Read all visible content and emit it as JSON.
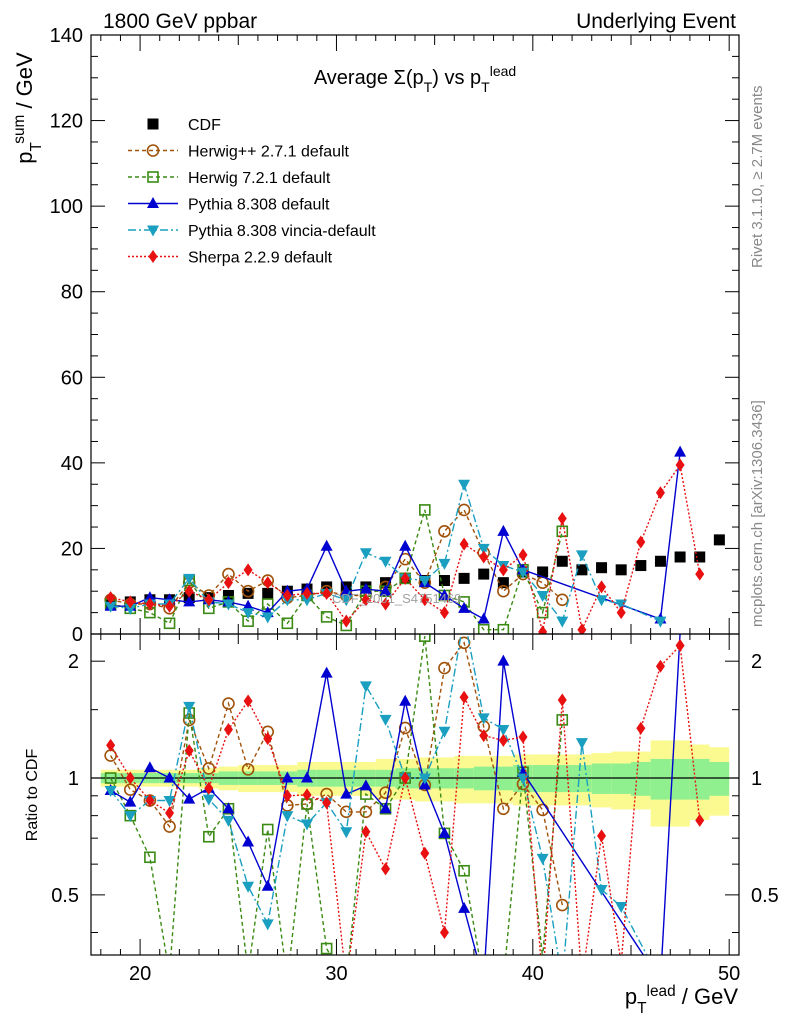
{
  "header": {
    "left": "1800 GeV ppbar",
    "right": "Underlying Event"
  },
  "side_labels": {
    "rivet": "Rivet 3.1.10, ≥ 2.7M events",
    "mcplots": "mcplots.cern.ch [arXiv:1306.3436]"
  },
  "watermark": "CDF_2001_S4751469",
  "chart_data": [
    {
      "type": "line",
      "title": "Average Σ(p_T) vs p_T^lead",
      "ylabel": "p_T^sum / GeV",
      "xlabel": "p_T^lead / GeV",
      "xlim": [
        17.5,
        50.5
      ],
      "ylim": [
        0,
        140
      ],
      "yticks": [
        0,
        20,
        40,
        60,
        80,
        100,
        120,
        140
      ],
      "legend_position": "top-left",
      "series": [
        {
          "name": "CDF",
          "color": "#000000",
          "marker": "square-filled",
          "x": [
            18.5,
            19.5,
            20.5,
            21.5,
            22.5,
            23.5,
            24.5,
            25.5,
            26.5,
            27.5,
            28.5,
            29.5,
            30.5,
            31.5,
            32.5,
            33.5,
            34.5,
            35.5,
            36.5,
            37.5,
            38.5,
            39.5,
            40.5,
            41.5,
            42.5,
            43.5,
            44.5,
            45.5,
            46.5,
            47.5,
            48.5,
            49.5
          ],
          "y": [
            7.0,
            7.5,
            8.0,
            8.0,
            8.5,
            8.5,
            9.0,
            9.5,
            9.5,
            10.0,
            10.5,
            11.0,
            11.0,
            11.0,
            12.0,
            13.0,
            12.5,
            12.5,
            13.0,
            14.0,
            12.0,
            14.5,
            14.5,
            17.0,
            15.0,
            15.5,
            15.0,
            16.0,
            17.0,
            18.0,
            18.0,
            22.0
          ]
        },
        {
          "name": "Herwig++ 2.7.1 default",
          "color": "#a0520a",
          "marker": "circle-open",
          "dash": "4,3",
          "x": [
            18.5,
            19.5,
            20.5,
            21.5,
            22.5,
            23.5,
            24.5,
            25.5,
            26.5,
            27.5,
            28.5,
            29.5,
            30.5,
            31.5,
            32.5,
            33.5,
            34.5,
            35.5,
            36.5,
            37.5,
            38.5,
            39.5,
            40.5,
            41.5
          ],
          "y": [
            8.0,
            7.0,
            7.0,
            6.0,
            12.0,
            9.0,
            14.0,
            10.0,
            12.5,
            8.5,
            9.0,
            10.0,
            9.0,
            9.0,
            11.0,
            17.5,
            12.0,
            24.0,
            29.0,
            19.0,
            10.0,
            14.0,
            12.0,
            8.0
          ]
        },
        {
          "name": "Herwig 7.2.1 default",
          "color": "#3a8a14",
          "marker": "square-open",
          "dash": "4,3",
          "x": [
            18.5,
            19.5,
            20.5,
            21.5,
            22.5,
            23.5,
            24.5,
            25.5,
            26.5,
            27.5,
            28.5,
            29.5,
            30.5,
            31.5,
            32.5,
            33.5,
            34.5,
            35.5,
            36.5,
            37.5,
            38.5,
            39.5,
            40.5,
            41.5
          ],
          "y": [
            7.0,
            6.0,
            5.0,
            2.5,
            12.5,
            6.0,
            7.5,
            3.0,
            7.0,
            2.5,
            9.0,
            4.0,
            2.0,
            10.0,
            10.0,
            13.0,
            29.0,
            9.0,
            7.5,
            1.0,
            1.0,
            15.0,
            5.0,
            24.0
          ]
        },
        {
          "name": "Pythia 8.308 default",
          "color": "#0000d0",
          "marker": "triangle-up",
          "dash": "",
          "x": [
            18.5,
            19.5,
            20.5,
            21.5,
            22.5,
            23.5,
            24.5,
            25.5,
            26.5,
            27.5,
            28.5,
            29.5,
            30.5,
            31.5,
            32.5,
            33.5,
            34.5,
            35.5,
            36.5,
            37.5,
            38.5,
            39.5,
            46.5,
            47.5
          ],
          "y": [
            6.5,
            6.5,
            8.5,
            8.0,
            7.5,
            8.0,
            7.5,
            6.5,
            5.0,
            10.0,
            10.5,
            20.5,
            10.0,
            10.5,
            10.0,
            20.5,
            12.0,
            9.0,
            6.0,
            3.5,
            24.0,
            15.0,
            3.5,
            42.5
          ]
        },
        {
          "name": "Pythia 8.308 vincia-default",
          "color": "#1a9fc0",
          "marker": "triangle-down",
          "dash": "8,3,2,3",
          "x": [
            18.5,
            19.5,
            20.5,
            21.5,
            22.5,
            23.5,
            24.5,
            25.5,
            26.5,
            27.5,
            28.5,
            29.5,
            30.5,
            31.5,
            32.5,
            33.5,
            34.5,
            35.5,
            36.5,
            37.5,
            38.5,
            39.5,
            40.5,
            41.5,
            42.5,
            43.5,
            44.5,
            46.5
          ],
          "y": [
            6.5,
            6.0,
            7.0,
            7.0,
            13.0,
            7.5,
            7.0,
            5.0,
            4.0,
            8.0,
            8.0,
            9.5,
            8.0,
            19.0,
            17.0,
            13.0,
            12.5,
            16.5,
            35.0,
            20.0,
            16.0,
            14.5,
            9.0,
            3.0,
            18.5,
            8.0,
            7.0,
            3.0
          ]
        },
        {
          "name": "Sherpa 2.2.9 default",
          "color": "#e81010",
          "marker": "diamond",
          "dash": "2,2",
          "x": [
            18.5,
            19.5,
            20.5,
            21.5,
            22.5,
            23.5,
            24.5,
            25.5,
            26.5,
            27.5,
            28.5,
            29.5,
            30.5,
            31.5,
            32.5,
            33.5,
            34.5,
            35.5,
            36.5,
            37.5,
            38.5,
            39.5,
            40.5,
            41.5,
            42.5,
            43.5,
            44.5,
            45.5,
            46.5,
            47.5,
            48.5
          ],
          "y": [
            8.5,
            7.5,
            7.0,
            6.5,
            10.0,
            8.0,
            12.0,
            15.0,
            12.0,
            9.0,
            9.5,
            9.5,
            3.0,
            8.0,
            7.0,
            13.0,
            8.0,
            5.0,
            21.0,
            18.0,
            15.0,
            18.5,
            0.5,
            27.0,
            1.0,
            11.0,
            5.0,
            21.5,
            33.0,
            39.5,
            14.0
          ]
        }
      ]
    },
    {
      "type": "line",
      "title": "",
      "ylabel": "Ratio to CDF",
      "xlabel": "p_T^lead / GeV",
      "xlim": [
        17.5,
        50.5
      ],
      "ylim": [
        0.35,
        2.35
      ],
      "yticks": [
        0.5,
        1,
        2
      ],
      "xticks": [
        20,
        30,
        40,
        50
      ],
      "reference_line": 1,
      "uncertainty_bands": {
        "inner_color": "#90f090",
        "outer_color": "#fafa90",
        "x": [
          18.5,
          19.5,
          20.5,
          21.5,
          22.5,
          23.5,
          24.5,
          25.5,
          26.5,
          27.5,
          28.5,
          29.5,
          30.5,
          31.5,
          32.5,
          33.5,
          34.5,
          35.5,
          36.5,
          37.5,
          38.5,
          39.5,
          40.5,
          41.5,
          42.5,
          43.5,
          44.5,
          45.5,
          46.5,
          47.5,
          48.5,
          49.5
        ],
        "inner": [
          0.03,
          0.03,
          0.03,
          0.03,
          0.03,
          0.03,
          0.04,
          0.04,
          0.04,
          0.04,
          0.05,
          0.05,
          0.05,
          0.05,
          0.05,
          0.06,
          0.06,
          0.06,
          0.06,
          0.07,
          0.07,
          0.08,
          0.08,
          0.08,
          0.08,
          0.09,
          0.09,
          0.1,
          0.12,
          0.12,
          0.12,
          0.1
        ],
        "outer": [
          0.05,
          0.05,
          0.05,
          0.05,
          0.05,
          0.06,
          0.07,
          0.08,
          0.08,
          0.08,
          0.1,
          0.1,
          0.1,
          0.1,
          0.12,
          0.12,
          0.13,
          0.13,
          0.14,
          0.14,
          0.14,
          0.15,
          0.15,
          0.15,
          0.15,
          0.16,
          0.17,
          0.17,
          0.25,
          0.25,
          0.22,
          0.2
        ]
      }
    }
  ]
}
